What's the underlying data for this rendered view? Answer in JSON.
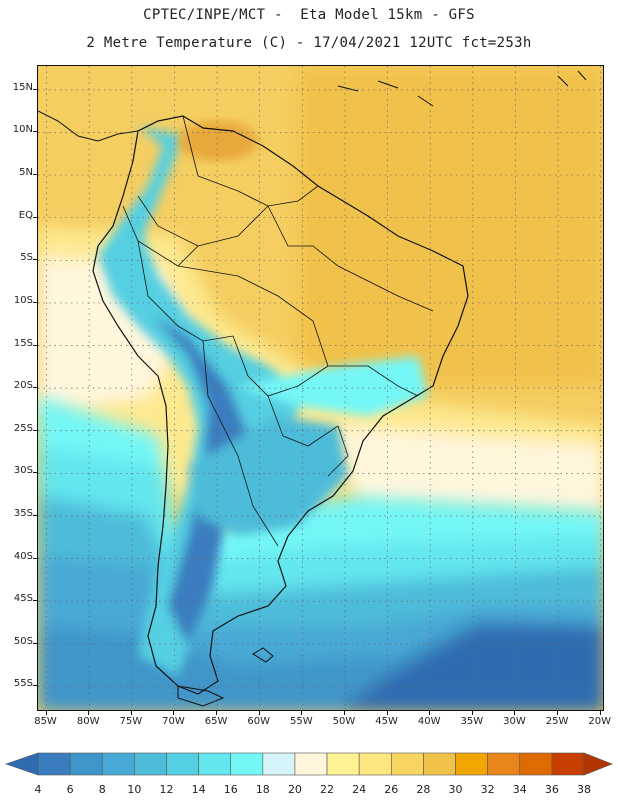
{
  "header": {
    "line1": "CPTEC/INPE/MCT -  Eta Model 15km - GFS",
    "line2": "2 Metre Temperature (C) - 17/04/2021 12UTC fct=253h"
  },
  "map": {
    "lat_labels": [
      "15N",
      "10N",
      "5N",
      "EQ",
      "5S",
      "10S",
      "15S",
      "20S",
      "25S",
      "30S",
      "35S",
      "40S",
      "45S",
      "50S",
      "55S"
    ],
    "lon_labels": [
      "85W",
      "80W",
      "75W",
      "70W",
      "65W",
      "60W",
      "55W",
      "50W",
      "45W",
      "40W",
      "35W",
      "30W",
      "25W",
      "20W"
    ],
    "extent": {
      "lon": [
        -86,
        -19.5
      ],
      "lat": [
        -58,
        17.8
      ]
    }
  },
  "colorbar": {
    "levels": [
      "4",
      "6",
      "8",
      "10",
      "12",
      "14",
      "16",
      "18",
      "20",
      "22",
      "24",
      "26",
      "28",
      "30",
      "32",
      "34",
      "36",
      "38"
    ],
    "colors": [
      "#2e6cb0",
      "#3a7dbf",
      "#3f95c9",
      "#48a9d6",
      "#4dbcd9",
      "#55cfe2",
      "#63e6ee",
      "#74f7f7",
      "#d5f5fb",
      "#fff6dc",
      "#fff295",
      "#fde57f",
      "#f8d563",
      "#f0c24a",
      "#f0a500",
      "#e8861b",
      "#dd6b00",
      "#c83e00",
      "#b23400"
    ]
  }
}
